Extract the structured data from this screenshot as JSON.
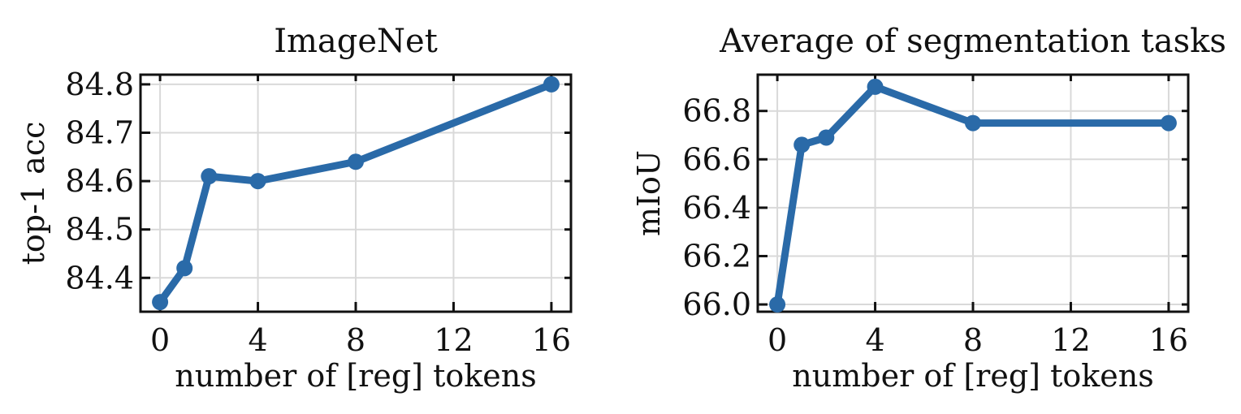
{
  "chart_data": [
    {
      "type": "line",
      "title": "ImageNet",
      "xlabel": "number of [reg] tokens",
      "ylabel": "top-1 acc",
      "x": [
        0,
        1,
        2,
        4,
        8,
        16
      ],
      "series": [
        {
          "values": [
            84.35,
            84.42,
            84.61,
            84.6,
            84.64,
            84.8
          ]
        }
      ],
      "xlim": [
        -0.8,
        16.8
      ],
      "ylim": [
        84.33,
        84.82
      ],
      "xticks": [
        0,
        4,
        8,
        12,
        16
      ],
      "xtick_labels": [
        "0",
        "4",
        "8",
        "12",
        "16"
      ],
      "yticks": [
        84.4,
        84.5,
        84.6,
        84.7,
        84.8
      ],
      "ytick_labels": [
        "84.4",
        "84.5",
        "84.6",
        "84.7",
        "84.8"
      ],
      "grid": true,
      "color": "#2a6aa8"
    },
    {
      "type": "line",
      "title": "Average of segmentation tasks",
      "xlabel": "number of [reg] tokens",
      "ylabel": "mIoU",
      "x": [
        0,
        1,
        2,
        4,
        8,
        16
      ],
      "series": [
        {
          "values": [
            66.0,
            66.66,
            66.69,
            66.9,
            66.75,
            66.75
          ]
        }
      ],
      "xlim": [
        -0.8,
        16.8
      ],
      "ylim": [
        65.97,
        66.95
      ],
      "xticks": [
        0,
        4,
        8,
        12,
        16
      ],
      "xtick_labels": [
        "0",
        "4",
        "8",
        "12",
        "16"
      ],
      "yticks": [
        66.0,
        66.2,
        66.4,
        66.6,
        66.8
      ],
      "ytick_labels": [
        "66.0",
        "66.2",
        "66.4",
        "66.6",
        "66.8"
      ],
      "grid": true,
      "color": "#2a6aa8"
    }
  ]
}
